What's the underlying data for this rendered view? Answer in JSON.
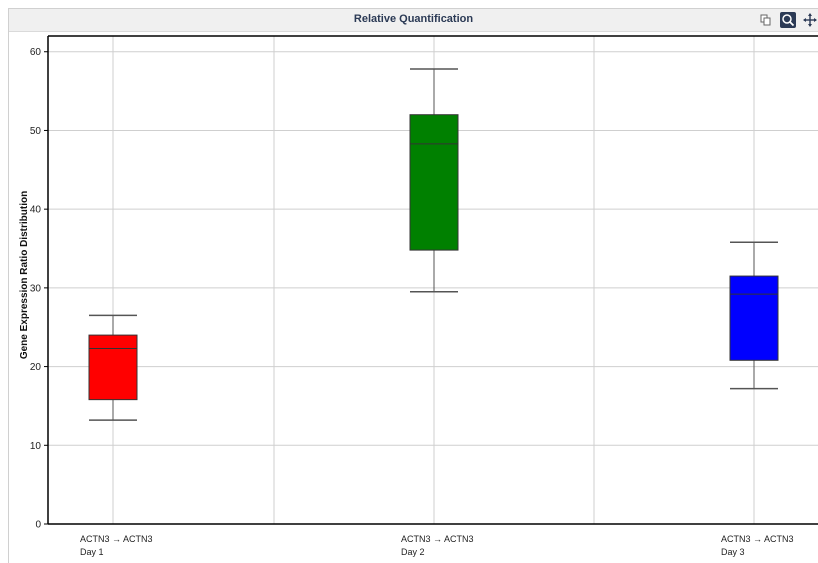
{
  "window": {
    "title": "Relative Quantification"
  },
  "toolbar": {
    "icons": [
      "copy-icon",
      "zoom-icon",
      "pan-icon"
    ]
  },
  "chart_data": {
    "type": "box",
    "ylabel": "Gene Expression Ratio Distribution",
    "ylim": [
      0,
      62
    ],
    "yticks": [
      0,
      10,
      20,
      30,
      40,
      50,
      60
    ],
    "grid": true,
    "categories": [
      {
        "line1": "ACTN3 → ACTN3",
        "line2": "Day 1"
      },
      {
        "line1": "ACTN3 → ACTN3",
        "line2": "Day 2"
      },
      {
        "line1": "ACTN3 → ACTN3",
        "line2": "Day 3"
      }
    ],
    "boxes": [
      {
        "min": 13.2,
        "q1": 15.8,
        "median": 22.3,
        "q3": 24.0,
        "max": 26.5,
        "color": "#ff0000"
      },
      {
        "min": 29.5,
        "q1": 34.8,
        "median": 48.3,
        "q3": 52.0,
        "max": 57.8,
        "color": "#008000"
      },
      {
        "min": 17.2,
        "q1": 20.8,
        "median": 29.2,
        "q3": 31.5,
        "max": 35.8,
        "color": "#0000ff"
      }
    ]
  }
}
